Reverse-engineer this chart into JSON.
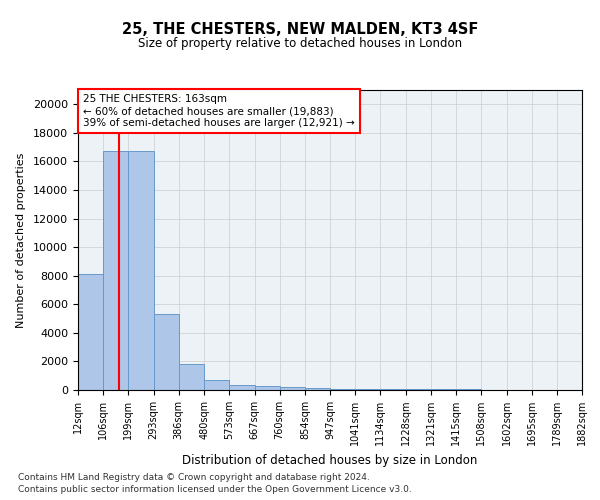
{
  "title": "25, THE CHESTERS, NEW MALDEN, KT3 4SF",
  "subtitle": "Size of property relative to detached houses in London",
  "xlabel": "Distribution of detached houses by size in London",
  "ylabel": "Number of detached properties",
  "bar_color": "#aec6e8",
  "bar_edge_color": "#6699cc",
  "grid_color": "#cccccc",
  "annotation_line1": "25 THE CHESTERS: 163sqm",
  "annotation_line2": "← 60% of detached houses are smaller (19,883)",
  "annotation_line3": "39% of semi-detached houses are larger (12,921) →",
  "red_line_x": 163,
  "bin_edges": [
    12,
    106,
    199,
    293,
    386,
    480,
    573,
    667,
    760,
    854,
    947,
    1041,
    1134,
    1228,
    1321,
    1415,
    1508,
    1602,
    1695,
    1789,
    1882
  ],
  "bar_heights": [
    8100,
    16700,
    16700,
    5300,
    1800,
    700,
    380,
    250,
    190,
    150,
    100,
    80,
    65,
    55,
    45,
    38,
    32,
    28,
    22,
    18
  ],
  "ylim": [
    0,
    21000
  ],
  "yticks": [
    0,
    2000,
    4000,
    6000,
    8000,
    10000,
    12000,
    14000,
    16000,
    18000,
    20000
  ],
  "footnote1": "Contains HM Land Registry data © Crown copyright and database right 2024.",
  "footnote2": "Contains public sector information licensed under the Open Government Licence v3.0.",
  "bg_color": "#edf2f7"
}
